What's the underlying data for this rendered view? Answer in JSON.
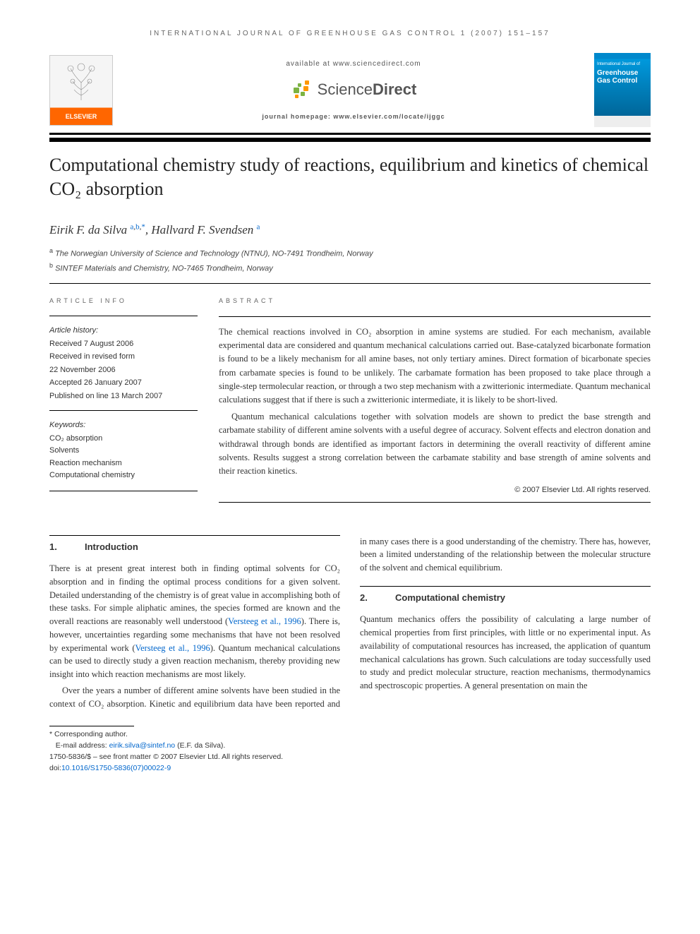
{
  "journal_header": "INTERNATIONAL JOURNAL OF GREENHOUSE GAS CONTROL 1 (2007) 151–157",
  "top": {
    "elsevier": "ELSEVIER",
    "available_at": "available at www.sciencedirect.com",
    "sciencedirect": "ScienceDirect",
    "homepage": "journal homepage: www.elsevier.com/locate/ijggc",
    "cover_sub": "International Journal of",
    "cover_main": "Greenhouse Gas Control"
  },
  "title": "Computational chemistry study of reactions, equilibrium and kinetics of chemical CO₂ absorption",
  "authors_html": "Eirik F. da Silva <sup><a>a</a>,<a>b</a>,<a>*</a></sup>, Hallvard F. Svendsen <sup><a>a</a></sup>",
  "affiliations": {
    "a": "The Norwegian University of Science and Technology (NTNU), NO-7491 Trondheim, Norway",
    "b": "SINTEF Materials and Chemistry, NO-7465 Trondheim, Norway"
  },
  "info": {
    "label": "ARTICLE INFO",
    "history_label": "Article history:",
    "history": [
      "Received 7 August 2006",
      "Received in revised form",
      "22 November 2006",
      "Accepted 26 January 2007",
      "Published on line 13 March 2007"
    ],
    "keywords_label": "Keywords:",
    "keywords": [
      "CO₂ absorption",
      "Solvents",
      "Reaction mechanism",
      "Computational chemistry"
    ]
  },
  "abstract": {
    "label": "ABSTRACT",
    "p1": "The chemical reactions involved in CO₂ absorption in amine systems are studied. For each mechanism, available experimental data are considered and quantum mechanical calculations carried out. Base-catalyzed bicarbonate formation is found to be a likely mechanism for all amine bases, not only tertiary amines. Direct formation of bicarbonate species from carbamate species is found to be unlikely. The carbamate formation has been proposed to take place through a single-step termolecular reaction, or through a two step mechanism with a zwitterionic intermediate. Quantum mechanical calculations suggest that if there is such a zwitterionic intermediate, it is likely to be short-lived.",
    "p2": "Quantum mechanical calculations together with solvation models are shown to predict the base strength and carbamate stability of different amine solvents with a useful degree of accuracy. Solvent effects and electron donation and withdrawal through bonds are identified as important factors in determining the overall reactivity of different amine solvents. Results suggest a strong correlation between the carbamate stability and base strength of amine solvents and their reaction kinetics.",
    "copyright": "© 2007 Elsevier Ltd. All rights reserved."
  },
  "sections": {
    "s1_num": "1.",
    "s1_title": "Introduction",
    "s1_p1_pre": "There is at present great interest both in finding optimal solvents for CO₂ absorption and in finding the optimal process conditions for a given solvent. Detailed understanding of the chemistry is of great value in accomplishing both of these tasks. For simple aliphatic amines, the species formed are known and the overall reactions are reasonably well understood (",
    "s1_p1_link1": "Versteeg et al., 1996",
    "s1_p1_mid": "). There is, however, uncertainties regarding some mechanisms that have not been resolved by experimental work (",
    "s1_p1_link2": "Versteeg et al., 1996",
    "s1_p1_post": "). Quantum mechanical calculations can be used to directly study a given reaction mechanism, thereby providing new insight into which reaction mechanisms are most likely.",
    "s1_p2": "Over the years a number of different amine solvents have been studied in the context of CO₂ absorption. Kinetic and equilibrium data have been reported and in many cases there is a good understanding of the chemistry. There has, however, been a limited understanding of the relationship between the molecular structure of the solvent and chemical equilibrium.",
    "s2_num": "2.",
    "s2_title": "Computational chemistry",
    "s2_p1": "Quantum mechanics offers the possibility of calculating a large number of chemical properties from first principles, with little or no experimental input. As availability of computational resources has increased, the application of quantum mechanical calculations has grown. Such calculations are today successfully used to study and predict molecular structure, reaction mechanisms, thermodynamics and spectroscopic properties. A general presentation on main the"
  },
  "footer": {
    "corresponding": "* Corresponding author.",
    "email_label": "E-mail address: ",
    "email": "eirik.silva@sintef.no",
    "email_post": " (E.F. da Silva).",
    "front_matter": "1750-5836/$ – see front matter © 2007 Elsevier Ltd. All rights reserved.",
    "doi_label": "doi:",
    "doi": "10.1016/S1750-5836(07)00022-9"
  },
  "colors": {
    "link": "#0066cc",
    "elsevier_orange": "#ff6600",
    "cover_blue": "#0088cc",
    "sd_green": "#7cb342",
    "sd_orange": "#ff9800"
  }
}
